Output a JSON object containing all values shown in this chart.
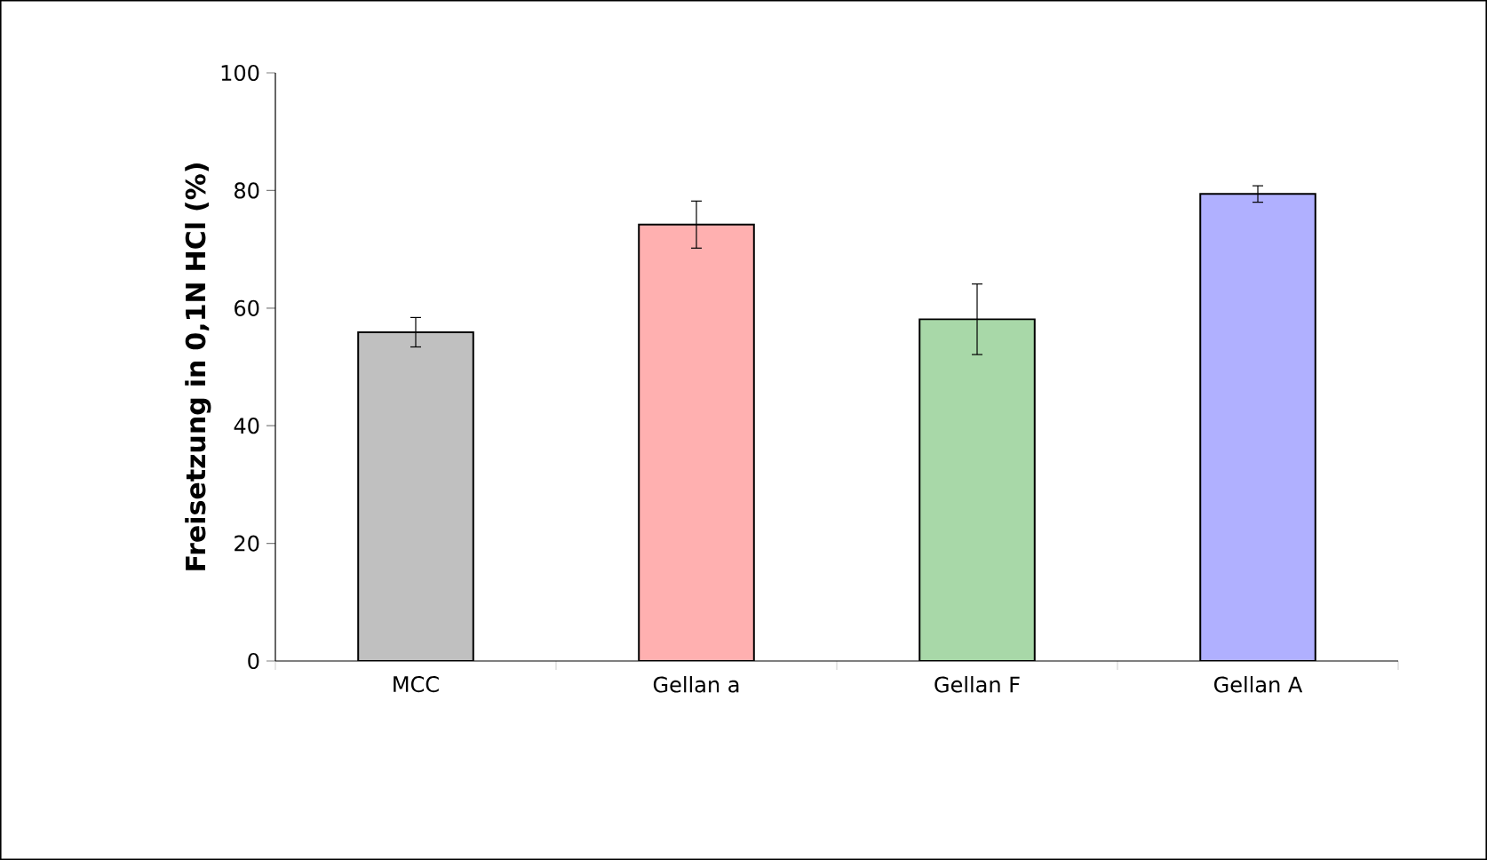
{
  "chart_data": {
    "type": "bar",
    "ylabel": "Freisetzung in 0,1N HCl (%)",
    "categories": [
      "MCC",
      "Gellan a",
      "Gellan F",
      "Gellan A"
    ],
    "values": [
      55.9,
      74.2,
      58.1,
      79.4
    ],
    "errors": [
      2.5,
      4,
      6,
      1.4
    ],
    "colors": [
      "#c0c0c0",
      "#ffb0b0",
      "#a8d8a8",
      "#b0b0ff"
    ],
    "ylim": [
      0,
      100
    ],
    "yticks": [
      0,
      20,
      40,
      60,
      80,
      100
    ]
  }
}
